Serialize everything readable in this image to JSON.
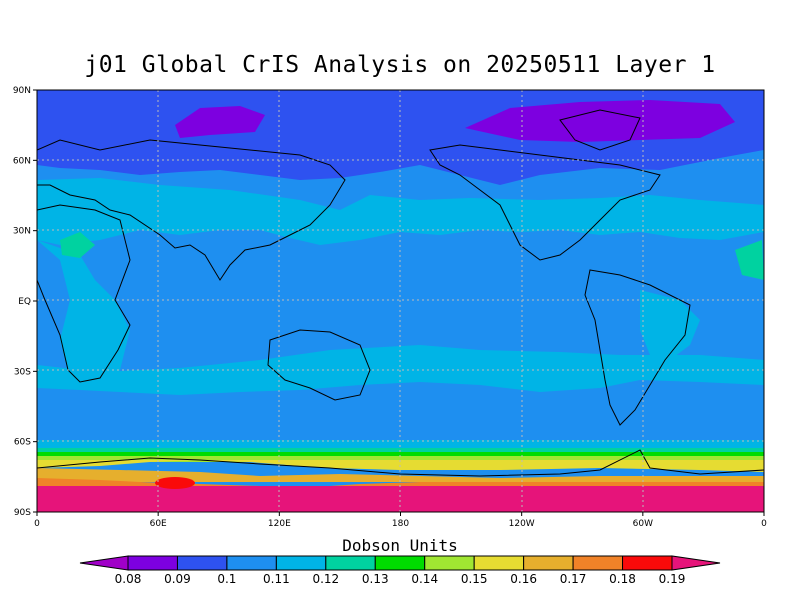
{
  "title": "j01 Global CrIS Analysis on 20250511 Layer 1",
  "map": {
    "type": "global-contour",
    "projection": "cylindrical-equidistant",
    "lat_ticks": [
      "90N",
      "60N",
      "30N",
      "EQ",
      "30S",
      "60S",
      "90S"
    ],
    "lon_ticks": [
      "0",
      "60E",
      "120E",
      "180",
      "120W",
      "60W",
      "0"
    ],
    "grid": true
  },
  "colorbar": {
    "title": "Dobson Units",
    "levels": [
      "0.08",
      "0.09",
      "0.1",
      "0.11",
      "0.12",
      "0.13",
      "0.14",
      "0.15",
      "0.16",
      "0.17",
      "0.18",
      "0.19"
    ],
    "colors": [
      "#a000c8",
      "#7d00e0",
      "#2e52f0",
      "#1e8ff0",
      "#00b4e6",
      "#00d2a0",
      "#00dc00",
      "#a0e632",
      "#e6dc32",
      "#e6af2d",
      "#f08228",
      "#fa0a0a",
      "#e6147a"
    ]
  }
}
